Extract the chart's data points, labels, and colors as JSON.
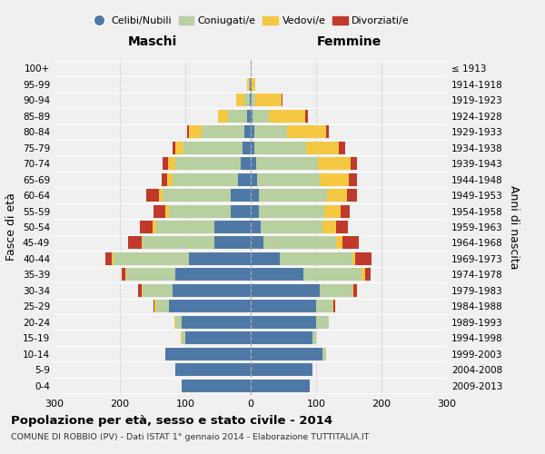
{
  "age_groups": [
    "0-4",
    "5-9",
    "10-14",
    "15-19",
    "20-24",
    "25-29",
    "30-34",
    "35-39",
    "40-44",
    "45-49",
    "50-54",
    "55-59",
    "60-64",
    "65-69",
    "70-74",
    "75-79",
    "80-84",
    "85-89",
    "90-94",
    "95-99",
    "100+"
  ],
  "birth_years": [
    "2009-2013",
    "2004-2008",
    "1999-2003",
    "1994-1998",
    "1989-1993",
    "1984-1988",
    "1979-1983",
    "1974-1978",
    "1969-1973",
    "1964-1968",
    "1959-1963",
    "1954-1958",
    "1949-1953",
    "1944-1948",
    "1939-1943",
    "1934-1938",
    "1929-1933",
    "1924-1928",
    "1919-1923",
    "1914-1918",
    "≤ 1913"
  ],
  "colors": {
    "celibe": "#4e79a7",
    "coniugato": "#b8cfa0",
    "vedovo": "#f5c842",
    "divorziato": "#c0392b"
  },
  "maschi": {
    "celibe": [
      105,
      115,
      130,
      100,
      105,
      125,
      120,
      115,
      95,
      55,
      55,
      30,
      30,
      20,
      15,
      13,
      10,
      5,
      2,
      1,
      0
    ],
    "coniugato": [
      0,
      0,
      0,
      5,
      10,
      20,
      45,
      75,
      115,
      110,
      90,
      95,
      105,
      100,
      100,
      90,
      65,
      30,
      8,
      2,
      0
    ],
    "vedovo": [
      0,
      0,
      0,
      2,
      2,
      2,
      2,
      2,
      2,
      2,
      5,
      5,
      5,
      8,
      12,
      12,
      20,
      15,
      12,
      2,
      0
    ],
    "divorziato": [
      0,
      0,
      0,
      0,
      0,
      2,
      5,
      5,
      10,
      20,
      20,
      18,
      20,
      8,
      8,
      5,
      2,
      0,
      0,
      0,
      0
    ]
  },
  "femmine": {
    "celibe": [
      90,
      95,
      110,
      95,
      100,
      100,
      105,
      80,
      45,
      20,
      15,
      12,
      12,
      10,
      8,
      5,
      5,
      3,
      2,
      1,
      0
    ],
    "coniugato": [
      0,
      0,
      5,
      5,
      20,
      25,
      50,
      90,
      110,
      110,
      95,
      100,
      105,
      95,
      95,
      80,
      50,
      25,
      5,
      1,
      0
    ],
    "vedovo": [
      0,
      0,
      0,
      0,
      0,
      2,
      2,
      5,
      5,
      10,
      20,
      25,
      30,
      45,
      50,
      50,
      60,
      55,
      40,
      5,
      2
    ],
    "divorziato": [
      0,
      0,
      0,
      0,
      0,
      2,
      5,
      8,
      25,
      25,
      18,
      15,
      15,
      12,
      10,
      10,
      5,
      5,
      2,
      0,
      0
    ]
  },
  "title": "Popolazione per età, sesso e stato civile - 2014",
  "subtitle": "COMUNE DI ROBBIO (PV) - Dati ISTAT 1° gennaio 2014 - Elaborazione TUTTITALIA.IT",
  "xlabel_left": "Maschi",
  "xlabel_right": "Femmine",
  "ylabel_left": "Fasce di età",
  "ylabel_right": "Anni di nascita",
  "xlim": 300,
  "legend_labels": [
    "Celibi/Nubili",
    "Coniugati/e",
    "Vedovi/e",
    "Divorziati/e"
  ],
  "background_color": "#f0f0f0"
}
